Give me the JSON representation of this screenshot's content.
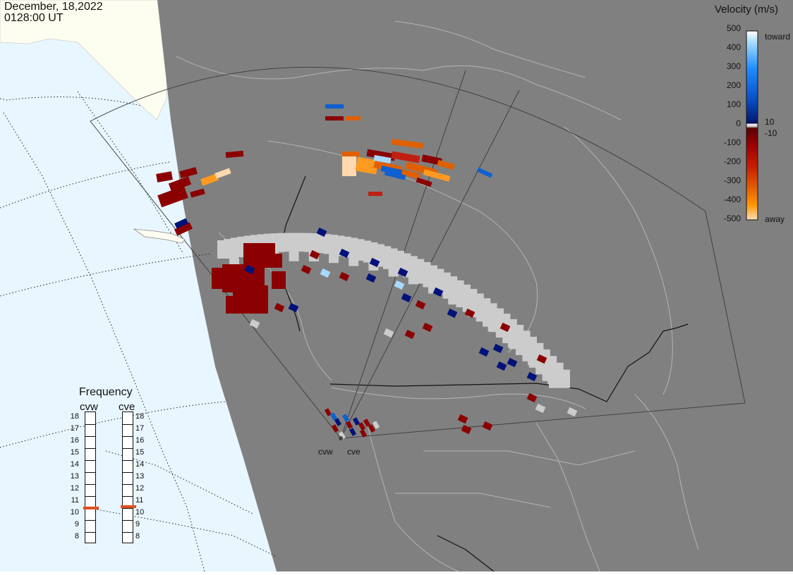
{
  "header": {
    "date": "December, 18,2022",
    "time": "0128:00 UT"
  },
  "colorbar": {
    "title": "Velocity (m/s)",
    "ticks": [
      "500",
      "400",
      "300",
      "200",
      "100",
      "0",
      "-100",
      "-200",
      "-300",
      "-400",
      "-500"
    ],
    "inner_pos": "10",
    "inner_neg": "-10",
    "top_label": "toward",
    "bottom_label": "away",
    "stops": [
      "#ffffff",
      "#a8dcff",
      "#1e8cff",
      "#0a50c8",
      "#00207a",
      "#000a50",
      "#5a0000",
      "#9a0000",
      "#c81e00",
      "#e86400",
      "#ff9600",
      "#ffdcb4"
    ]
  },
  "frequency_panel": {
    "title": "Frequency",
    "radars": [
      {
        "name": "cvw",
        "value_mhz": 10.5
      },
      {
        "name": "cve",
        "value_mhz": 10.6
      }
    ],
    "scale": [
      "18",
      "17",
      "16",
      "15",
      "14",
      "13",
      "12",
      "11",
      "10",
      "9",
      "8"
    ]
  },
  "sites": [
    "cvw",
    "cve"
  ],
  "colors": {
    "ocean": "#e8f6ff",
    "land": "#fdfdf0",
    "night": "#808080",
    "ground_scatter": "#cccccc"
  }
}
